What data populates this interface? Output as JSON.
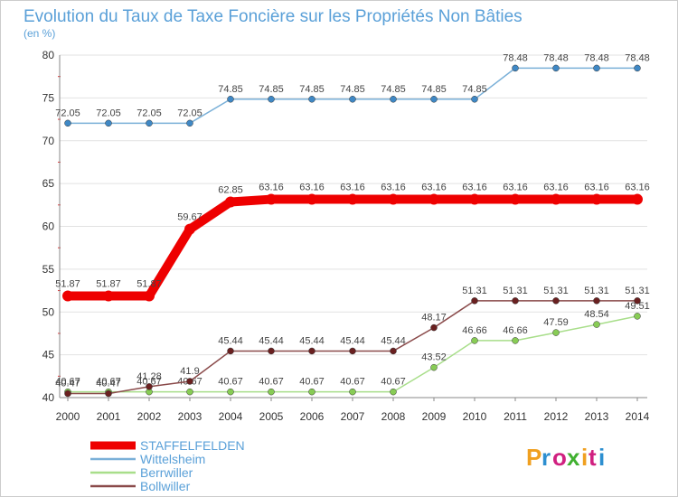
{
  "chart_data": {
    "type": "line",
    "title": "Evolution du Taux de Taxe Foncière sur les Propriétés Non Bâties",
    "subtitle": "(en %)",
    "xlabel": "",
    "ylabel": "(en %)",
    "ylim": [
      40,
      80
    ],
    "yticks": [
      40,
      45,
      50,
      55,
      60,
      65,
      70,
      75,
      80
    ],
    "grid": true,
    "legend_position": "bottom-left",
    "categories": [
      "2000",
      "2001",
      "2002",
      "2003",
      "2004",
      "2005",
      "2006",
      "2007",
      "2008",
      "2009",
      "2010",
      "2011",
      "2012",
      "2013",
      "2014"
    ],
    "series": [
      {
        "name": "STAFFELFELDEN",
        "color": "#ee0000",
        "marker": "#ee0000",
        "thick": true,
        "values": [
          51.87,
          51.87,
          51.87,
          59.67,
          62.85,
          63.16,
          63.16,
          63.16,
          63.16,
          63.16,
          63.16,
          63.16,
          63.16,
          63.16,
          63.16
        ],
        "labels": [
          "51.87",
          "51.87",
          "51.87",
          "59.67",
          "62.85",
          "63.16",
          "63.16",
          "63.16",
          "63.16",
          "63.16",
          "63.16",
          "63.16",
          "63.16",
          "63.16",
          "63.16"
        ]
      },
      {
        "name": "Wittelsheim",
        "color": "#7ab0d8",
        "marker": "#3f88c5",
        "thick": false,
        "values": [
          72.05,
          72.05,
          72.05,
          72.05,
          74.85,
          74.85,
          74.85,
          74.85,
          74.85,
          74.85,
          74.85,
          78.48,
          78.48,
          78.48,
          78.48
        ],
        "labels": [
          "72.05",
          "72.05",
          "72.05",
          "72.05",
          "74.85",
          "74.85",
          "74.85",
          "74.85",
          "74.85",
          "74.85",
          "74.85",
          "78.48",
          "78.48",
          "78.48",
          "78.48"
        ]
      },
      {
        "name": "Berrwiller",
        "color": "#a8de8a",
        "marker": "#88cc55",
        "thick": false,
        "values": [
          40.67,
          40.67,
          40.67,
          40.67,
          40.67,
          40.67,
          40.67,
          40.67,
          40.67,
          43.52,
          46.66,
          46.66,
          47.59,
          48.54,
          49.51
        ],
        "labels": [
          "40.67",
          "40.67",
          "40.67",
          "40.67",
          "40.67",
          "40.67",
          "40.67",
          "40.67",
          "40.67",
          "43.52",
          "46.66",
          "46.66",
          "47.59",
          "48.54",
          "49.51"
        ]
      },
      {
        "name": "Bollwiller",
        "color": "#8a4a4a",
        "marker": "#6a2020",
        "thick": false,
        "values": [
          40.47,
          40.47,
          41.28,
          41.9,
          45.44,
          45.44,
          45.44,
          45.44,
          45.44,
          48.17,
          51.31,
          51.31,
          51.31,
          51.31,
          51.31
        ],
        "labels": [
          "40.47",
          "40.47",
          "41.28",
          "41.9",
          "45.44",
          "45.44",
          "45.44",
          "45.44",
          "45.44",
          "48.17",
          "51.31",
          "51.31",
          "51.31",
          "51.31",
          "51.31"
        ]
      }
    ]
  },
  "logo": {
    "text": "Proxiti",
    "letter_colors": [
      "#f0a020",
      "#2d8fd0",
      "#d02080",
      "#40b030",
      "#f0a020",
      "#d02080",
      "#2d8fd0"
    ]
  }
}
